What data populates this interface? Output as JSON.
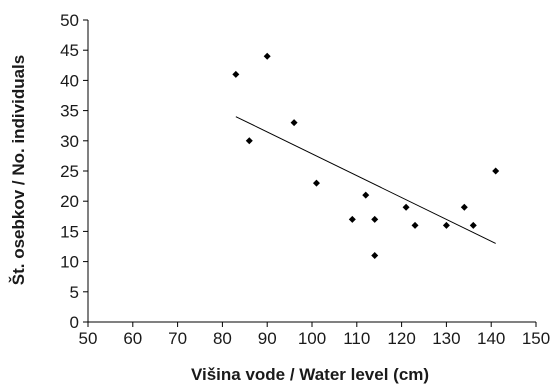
{
  "chart_data": {
    "type": "scatter",
    "title": "",
    "xlabel": "Višina vode / Water level (cm)",
    "ylabel": "Št. osebkov / No. individuals",
    "xlim": [
      50,
      150
    ],
    "ylim": [
      0,
      50
    ],
    "x_ticks": [
      50,
      60,
      70,
      80,
      90,
      100,
      110,
      120,
      130,
      140,
      150
    ],
    "y_ticks": [
      0,
      5,
      10,
      15,
      20,
      25,
      30,
      35,
      40,
      45,
      50
    ],
    "grid": false,
    "legend": "none",
    "marker": "diamond",
    "marker_color": "#000000",
    "points": [
      {
        "x": 83,
        "y": 41
      },
      {
        "x": 86,
        "y": 30
      },
      {
        "x": 90,
        "y": 44
      },
      {
        "x": 96,
        "y": 33
      },
      {
        "x": 101,
        "y": 23
      },
      {
        "x": 109,
        "y": 17
      },
      {
        "x": 112,
        "y": 21
      },
      {
        "x": 114,
        "y": 17
      },
      {
        "x": 114,
        "y": 11
      },
      {
        "x": 121,
        "y": 19
      },
      {
        "x": 123,
        "y": 16
      },
      {
        "x": 130,
        "y": 16
      },
      {
        "x": 134,
        "y": 19
      },
      {
        "x": 136,
        "y": 16
      },
      {
        "x": 141,
        "y": 25
      }
    ],
    "trendline": {
      "x": [
        83,
        141
      ],
      "y": [
        34,
        13
      ]
    }
  }
}
